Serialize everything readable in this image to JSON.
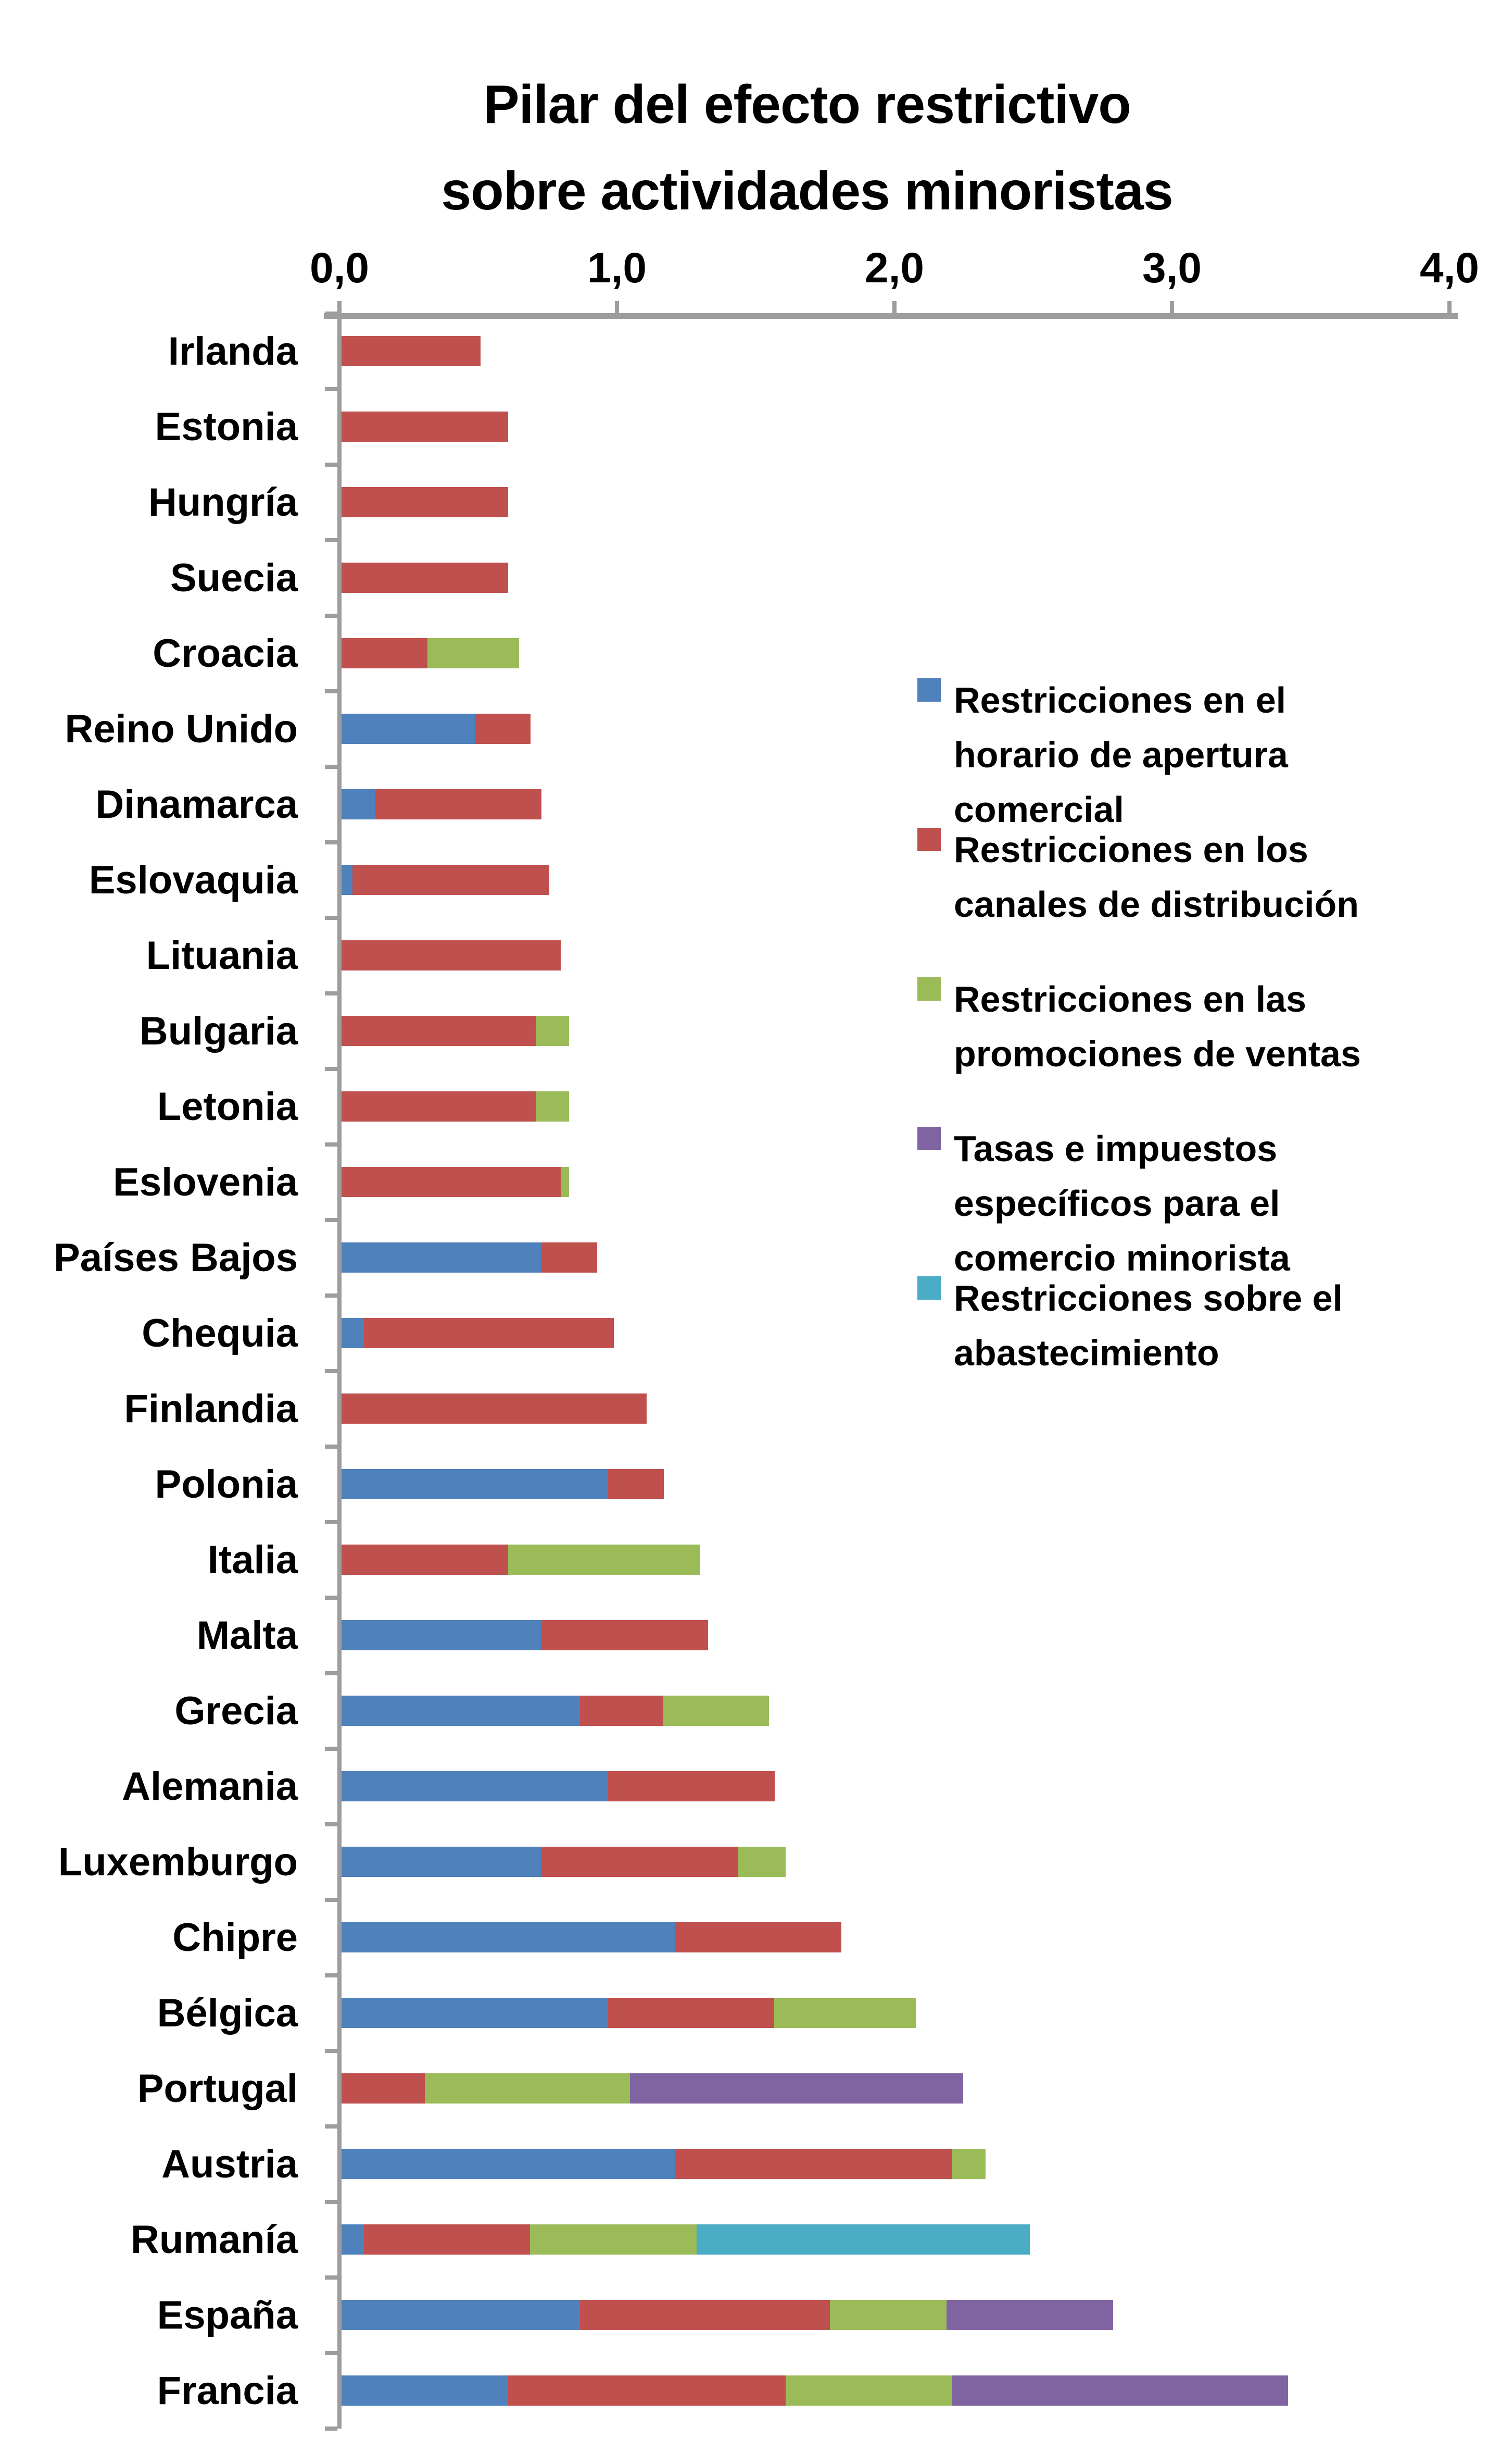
{
  "title": {
    "line1": "Pilar del efecto restrictivo",
    "line2": "sobre actividades minoristas"
  },
  "chart_data": {
    "type": "bar",
    "orientation": "horizontal",
    "stacked": true,
    "title": "Pilar del efecto restrictivo sobre actividades minoristas",
    "xlabel": "",
    "ylabel": "",
    "xlim": [
      0,
      4
    ],
    "grid": false,
    "legend_position": "right",
    "x_ticks": [
      "0,0",
      "1,0",
      "2,0",
      "3,0",
      "4,0"
    ],
    "x_tick_values": [
      0,
      1,
      2,
      3,
      4
    ],
    "axis_color": "#9d9d9d",
    "categories": [
      "Irlanda",
      "Estonia",
      "Hungría",
      "Suecia",
      "Croacia",
      "Reino Unido",
      "Dinamarca",
      "Eslovaquia",
      "Lituania",
      "Bulgaria",
      "Letonia",
      "Eslovenia",
      "Países Bajos",
      "Chequia",
      "Finlandia",
      "Polonia",
      "Italia",
      "Malta",
      "Grecia",
      "Alemania",
      "Luxemburgo",
      "Chipre",
      "Bélgica",
      "Portugal",
      "Austria",
      "Rumanía",
      "España",
      "Francia"
    ],
    "series": [
      {
        "name": "Restricciones en el horario de apertura comercial",
        "color": "#4F81BD",
        "values": [
          0,
          0,
          0,
          0,
          0,
          0.48,
          0.12,
          0.04,
          0,
          0,
          0,
          0,
          0.72,
          0.08,
          0,
          0.96,
          0,
          0.72,
          0.86,
          0.96,
          0.72,
          1.2,
          0.96,
          0,
          1.2,
          0.08,
          0.86,
          0.6
        ]
      },
      {
        "name": "Restricciones en los canales de distribución",
        "color": "#C0504D",
        "values": [
          0.5,
          0.6,
          0.6,
          0.6,
          0.31,
          0.2,
          0.6,
          0.71,
          0.79,
          0.7,
          0.7,
          0.79,
          0.2,
          0.9,
          1.1,
          0.2,
          0.6,
          0.6,
          0.3,
          0.6,
          0.71,
          0.6,
          0.6,
          0.3,
          1.0,
          0.6,
          0.9,
          1.0
        ]
      },
      {
        "name": "Restricciones en las promociones de ventas",
        "color": "#9BBB59",
        "values": [
          0,
          0,
          0,
          0,
          0.33,
          0,
          0,
          0,
          0,
          0.12,
          0.12,
          0.03,
          0,
          0,
          0,
          0,
          0.69,
          0,
          0.38,
          0,
          0.17,
          0,
          0.51,
          0.74,
          0.12,
          0.6,
          0.42,
          0.6
        ]
      },
      {
        "name": "Tasas e impuestos específicos para el comercio minorista",
        "color": "#8064A2",
        "values": [
          0,
          0,
          0,
          0,
          0,
          0,
          0,
          0,
          0,
          0,
          0,
          0,
          0,
          0,
          0,
          0,
          0,
          0,
          0,
          0,
          0,
          0,
          0,
          1.2,
          0,
          0,
          0.6,
          1.21
        ]
      },
      {
        "name": "Restricciones sobre el abastecimiento",
        "color": "#4BACC6",
        "values": [
          0,
          0,
          0,
          0,
          0,
          0,
          0,
          0,
          0,
          0,
          0,
          0,
          0,
          0,
          0,
          0,
          0,
          0,
          0,
          0,
          0,
          0,
          0,
          0,
          0,
          1.2,
          0,
          0
        ]
      }
    ],
    "totals": [
      0.5,
      0.6,
      0.6,
      0.6,
      0.64,
      0.68,
      0.72,
      0.75,
      0.79,
      0.82,
      0.82,
      0.82,
      0.92,
      0.98,
      1.1,
      1.16,
      1.29,
      1.32,
      1.54,
      1.56,
      1.6,
      1.8,
      2.07,
      2.24,
      2.32,
      2.48,
      2.78,
      3.41
    ]
  },
  "legend": {
    "items": [
      {
        "color": "#4F81BD",
        "lines": [
          "Restricciones en el",
          "horario de apertura",
          "comercial"
        ]
      },
      {
        "color": "#C0504D",
        "lines": [
          "Restricciones en los",
          "canales de distribución"
        ]
      },
      {
        "color": "#9BBB59",
        "lines": [
          "Restricciones en las",
          "promociones de ventas"
        ]
      },
      {
        "color": "#8064A2",
        "lines": [
          "Tasas e impuestos",
          "específicos para el",
          "comercio minorista"
        ]
      },
      {
        "color": "#4BACC6",
        "lines": [
          "Restricciones sobre el",
          "abastecimiento"
        ]
      }
    ]
  }
}
